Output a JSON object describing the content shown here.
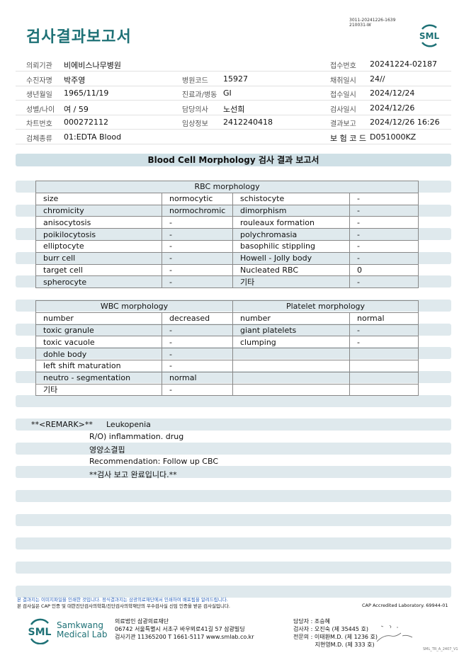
{
  "header": {
    "title": "검사결과보고서",
    "doc_id_line1": "3011-20241226-1639",
    "doc_id_line2": "210031-W",
    "logo_text": "SML"
  },
  "info": [
    [
      {
        "label": "의뢰기관",
        "value": "비에비스나무병원"
      },
      {
        "label": "",
        "value": ""
      },
      {
        "label": "접수번호",
        "value": "20241224-02187"
      }
    ],
    [
      {
        "label": "수진자명",
        "value": "박주영"
      },
      {
        "label": "병원코드",
        "value": "15927"
      },
      {
        "label": "채취일시",
        "value": "24//"
      }
    ],
    [
      {
        "label": "생년월일",
        "value": "1965/11/19"
      },
      {
        "label": "진료과/병동",
        "value": "GI"
      },
      {
        "label": "접수일시",
        "value": "2024/12/24"
      }
    ],
    [
      {
        "label": "성별/나이",
        "value": "여 / 59"
      },
      {
        "label": "담당의사",
        "value": "노선희"
      },
      {
        "label": "검사일시",
        "value": "2024/12/26"
      }
    ],
    [
      {
        "label": "차트번호",
        "value": "000272112"
      },
      {
        "label": "임상정보",
        "value": "2412240418"
      },
      {
        "label": "결과보고",
        "value": "2024/12/26 16:26"
      }
    ],
    [
      {
        "label": "검체종류",
        "value": "01:EDTA Blood"
      },
      {
        "label": "",
        "value": ""
      },
      {
        "label": "보 험 코 드",
        "value": "D051000KZ"
      }
    ]
  ],
  "section_title": "Blood Cell Morphology 검사 결과 보고서",
  "rbc": {
    "header": "RBC morphology",
    "rows": [
      [
        "size",
        "normocytic",
        "schistocyte",
        "-"
      ],
      [
        "chromicity",
        "normochromic",
        "dimorphism",
        "-"
      ],
      [
        "anisocytosis",
        "-",
        "rouleaux formation",
        "-"
      ],
      [
        "poikilocytosis",
        "-",
        "polychromasia",
        "-"
      ],
      [
        "elliptocyte",
        "-",
        "basophilic stippling",
        "-"
      ],
      [
        "burr cell",
        "-",
        "Howell - Jolly body",
        "-"
      ],
      [
        "target cell",
        "-",
        "Nucleated RBC",
        "0"
      ],
      [
        "spherocyte",
        "-",
        "기타",
        "-"
      ]
    ]
  },
  "wbc_plt": {
    "wbc_header": "WBC morphology",
    "plt_header": "Platelet morphology",
    "rows": [
      [
        "number",
        "decreased",
        "number",
        "normal"
      ],
      [
        "toxic granule",
        "-",
        "giant platelets",
        "-"
      ],
      [
        "toxic vacuole",
        "-",
        "clumping",
        "-"
      ],
      [
        "dohle body",
        "-",
        "",
        ""
      ],
      [
        "left shift maturation",
        "-",
        "",
        ""
      ],
      [
        "neutro - segmentation",
        "normal",
        "",
        ""
      ],
      [
        "기타",
        "-",
        "",
        ""
      ]
    ]
  },
  "remark": {
    "label": "**<REMARK>**",
    "lines": [
      "Leukopenia",
      "R/O) inflammation.  drug",
      "영양소결핍",
      "Recommendation: Follow up CBC",
      "**검사 보고 완료입니다.**"
    ]
  },
  "footer": {
    "note1": "본 결과지는 이미지파일을 인쇄한 것입니다. 정식결과지는 삼광의료재단에서 인쇄하여 배포됨을 알려드립니다.",
    "note2": "본 검사실은 CAP 인증 및 대한진단검사의학회/진단검사의학재단의 우수검사실 신임 인증을 받은 검사실입니다.",
    "cap": "CAP Accredited Laboratory. 69944-01",
    "brand_logo": "SML",
    "brand_name1": "Samkwang",
    "brand_name2": "Medical Lab",
    "org_lines": [
      "의료법인 삼광의료재단",
      "06742 서울특별시 서초구 바우뫼로41길 57 삼광빌딩",
      "검사기관 11365200 T 1661-5117 www.smlab.co.kr"
    ],
    "staff_lines": [
      "담당자 : 조승혜",
      "검사자 : 오진숙 (제 35445 호)",
      "전문의 : 이태환M.D. (제 1236 호)",
      "            지현영M.D. (제 333 호)"
    ],
    "form_code": "SML_TR_A_2407_V1"
  },
  "colors": {
    "accent": "#1e7176",
    "stripe": "#dfe9ed",
    "title_bar": "#cfe0e6"
  }
}
